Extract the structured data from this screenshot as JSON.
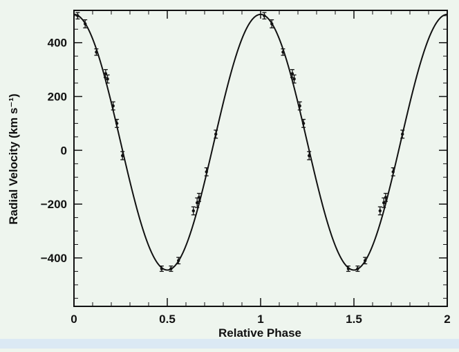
{
  "chart_data": {
    "type": "scatter",
    "title": "",
    "xlabel": "Relative Phase",
    "ylabel": "Radial Velocity (km s⁻¹)",
    "xlim": [
      0,
      2
    ],
    "ylim": [
      -580,
      520
    ],
    "x_ticks": [
      0,
      0.5,
      1,
      1.5,
      2
    ],
    "x_tick_labels": [
      "0",
      "0.5",
      "1",
      "1.5",
      "2"
    ],
    "y_ticks": [
      -400,
      -200,
      0,
      200,
      400
    ],
    "y_tick_labels": [
      "−400",
      "−200",
      "0",
      "200",
      "400"
    ],
    "grid": false,
    "fit_curve": {
      "description_free": true,
      "gamma": 30,
      "amplitude": 475,
      "period": 1,
      "phase_of_max": 0
    },
    "series": [
      {
        "points": [
          {
            "x": 0.02,
            "y": 500,
            "err": 12
          },
          {
            "x": 0.06,
            "y": 470,
            "err": 15
          },
          {
            "x": 0.12,
            "y": 365,
            "err": 12
          },
          {
            "x": 0.17,
            "y": 285,
            "err": 15
          },
          {
            "x": 0.18,
            "y": 265,
            "err": 15
          },
          {
            "x": 0.21,
            "y": 165,
            "err": 15
          },
          {
            "x": 0.23,
            "y": 100,
            "err": 15
          },
          {
            "x": 0.26,
            "y": -20,
            "err": 15
          },
          {
            "x": 0.47,
            "y": -440,
            "err": 10
          },
          {
            "x": 0.52,
            "y": -440,
            "err": 10
          },
          {
            "x": 0.56,
            "y": -410,
            "err": 12
          },
          {
            "x": 0.64,
            "y": -225,
            "err": 15
          },
          {
            "x": 0.66,
            "y": -195,
            "err": 18
          },
          {
            "x": 0.67,
            "y": -175,
            "err": 15
          },
          {
            "x": 0.71,
            "y": -80,
            "err": 15
          },
          {
            "x": 0.76,
            "y": 60,
            "err": 15
          }
        ]
      }
    ]
  }
}
